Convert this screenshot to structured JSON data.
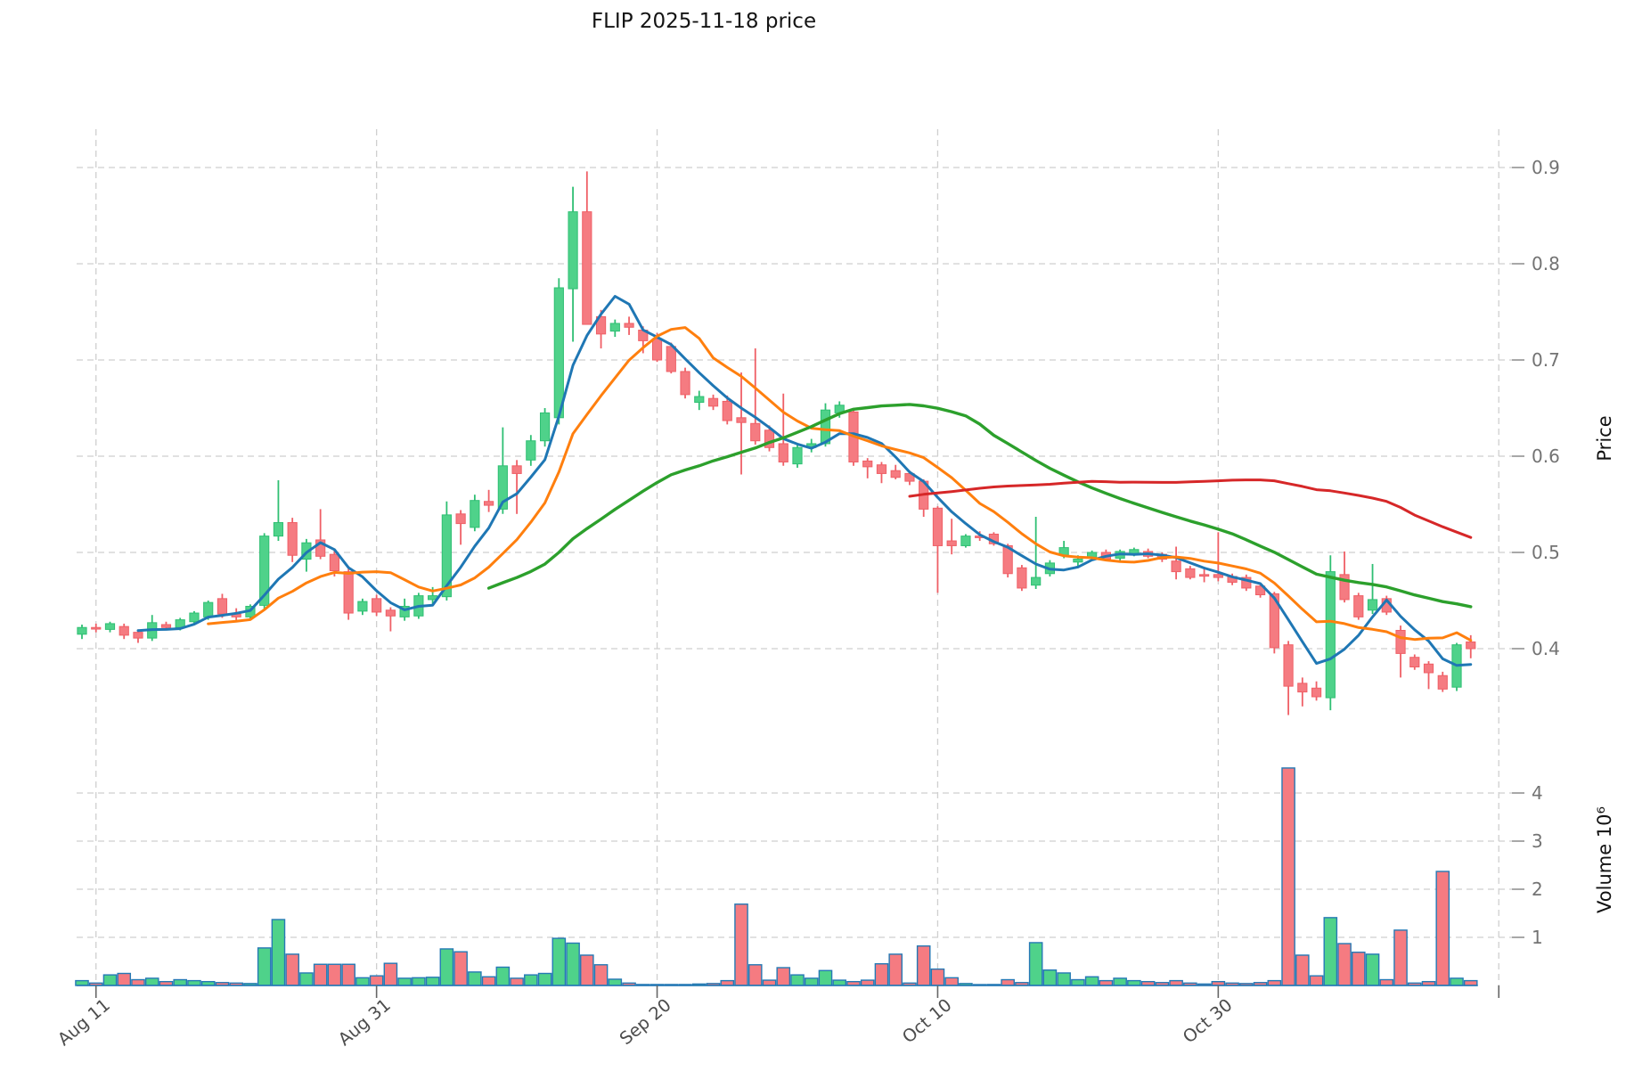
{
  "chart_data": {
    "type": "candlestick",
    "title": "FLIP  2025-11-18  price",
    "ylabel": "Price",
    "ylabel_volume": "Volume  10⁶",
    "legend": "none",
    "grid": "dashed",
    "x_tick_labels": [
      "Aug 11",
      "Aug 31",
      "Sep 20",
      "Oct 10",
      "Oct 30"
    ],
    "price_tick_labels": [
      "0.9",
      "0.8",
      "0.7",
      "0.6",
      "0.5",
      "0.4"
    ],
    "price_tick_values": [
      0.9,
      0.8,
      0.7,
      0.6,
      0.5,
      0.4
    ],
    "volume_tick_labels": [
      "4",
      "3",
      "2",
      "1"
    ],
    "volume_tick_values": [
      4,
      3,
      2,
      1
    ],
    "ylim_price": [
      0.32,
      0.95
    ],
    "ylim_volume": [
      0,
      4.7
    ],
    "moving_averages": {
      "windows": [
        5,
        10,
        30,
        60
      ],
      "colors": [
        "#1f77b4",
        "#ff7f0e",
        "#2ca02c",
        "#d62728"
      ]
    },
    "colors": {
      "up": "#4fd28a",
      "up_edge": "#2fbf73",
      "down": "#f57b81",
      "down_edge": "#ef5f66",
      "volume_edge": "#2579b5",
      "grid": "#cfcfcf",
      "tick_text": "#737373",
      "date_text": "#4d4d4d",
      "title_text": "#141414"
    },
    "columns": [
      "date",
      "open",
      "high",
      "low",
      "close",
      "volume_millions"
    ],
    "candles": [
      [
        "Aug 10",
        0.415,
        0.425,
        0.41,
        0.422,
        0.1
      ],
      [
        "Aug 11",
        0.422,
        0.426,
        0.417,
        0.421,
        0.05
      ],
      [
        "Aug 12",
        0.42,
        0.428,
        0.417,
        0.426,
        0.22
      ],
      [
        "Aug 13",
        0.423,
        0.426,
        0.41,
        0.414,
        0.25
      ],
      [
        "Aug 14",
        0.417,
        0.42,
        0.406,
        0.411,
        0.12
      ],
      [
        "Aug 15",
        0.411,
        0.435,
        0.408,
        0.427,
        0.15
      ],
      [
        "Aug 16",
        0.425,
        0.428,
        0.419,
        0.422,
        0.08
      ],
      [
        "Aug 17",
        0.422,
        0.432,
        0.419,
        0.43,
        0.12
      ],
      [
        "Aug 18",
        0.428,
        0.439,
        0.425,
        0.437,
        0.1
      ],
      [
        "Aug 19",
        0.433,
        0.45,
        0.43,
        0.448,
        0.08
      ],
      [
        "Aug 20",
        0.452,
        0.457,
        0.432,
        0.436,
        0.06
      ],
      [
        "Aug 21",
        0.436,
        0.442,
        0.428,
        0.433,
        0.05
      ],
      [
        "Aug 22",
        0.433,
        0.446,
        0.431,
        0.444,
        0.04
      ],
      [
        "Aug 23",
        0.445,
        0.52,
        0.44,
        0.517,
        0.78
      ],
      [
        "Aug 24",
        0.517,
        0.575,
        0.512,
        0.531,
        1.37
      ],
      [
        "Aug 25",
        0.531,
        0.536,
        0.49,
        0.497,
        0.65
      ],
      [
        "Aug 26",
        0.493,
        0.514,
        0.48,
        0.51,
        0.26
      ],
      [
        "Aug 27",
        0.513,
        0.545,
        0.493,
        0.496,
        0.44
      ],
      [
        "Aug 28",
        0.498,
        0.503,
        0.475,
        0.481,
        0.44
      ],
      [
        "Aug 29",
        0.48,
        0.484,
        0.43,
        0.437,
        0.44
      ],
      [
        "Aug 30",
        0.439,
        0.452,
        0.435,
        0.449,
        0.16
      ],
      [
        "Aug 31",
        0.452,
        0.456,
        0.434,
        0.438,
        0.2
      ],
      [
        "Sep 1",
        0.44,
        0.443,
        0.418,
        0.434,
        0.46
      ],
      [
        "Sep 2",
        0.433,
        0.452,
        0.429,
        0.444,
        0.15
      ],
      [
        "Sep 3",
        0.434,
        0.458,
        0.431,
        0.455,
        0.16
      ],
      [
        "Sep 4",
        0.451,
        0.464,
        0.444,
        0.455,
        0.17
      ],
      [
        "Sep 5",
        0.454,
        0.553,
        0.45,
        0.539,
        0.76
      ],
      [
        "Sep 6",
        0.54,
        0.544,
        0.508,
        0.53,
        0.7
      ],
      [
        "Sep 7",
        0.526,
        0.56,
        0.522,
        0.554,
        0.28
      ],
      [
        "Sep 8",
        0.553,
        0.565,
        0.542,
        0.549,
        0.18
      ],
      [
        "Sep 9",
        0.545,
        0.63,
        0.54,
        0.59,
        0.38
      ],
      [
        "Sep 10",
        0.59,
        0.596,
        0.54,
        0.582,
        0.15
      ],
      [
        "Sep 11",
        0.596,
        0.622,
        0.59,
        0.616,
        0.22
      ],
      [
        "Sep 12",
        0.616,
        0.65,
        0.61,
        0.645,
        0.25
      ],
      [
        "Sep 13",
        0.64,
        0.785,
        0.633,
        0.775,
        0.98
      ],
      [
        "Sep 14",
        0.774,
        0.88,
        0.719,
        0.854,
        0.88
      ],
      [
        "Sep 15",
        0.854,
        0.896,
        0.737,
        0.737,
        0.63
      ],
      [
        "Sep 16",
        0.745,
        0.752,
        0.712,
        0.727,
        0.43
      ],
      [
        "Sep 17",
        0.73,
        0.742,
        0.724,
        0.738,
        0.13
      ],
      [
        "Sep 18",
        0.738,
        0.745,
        0.726,
        0.734,
        0.05
      ],
      [
        "Sep 19",
        0.731,
        0.735,
        0.707,
        0.72,
        0.02
      ],
      [
        "Sep 20",
        0.722,
        0.728,
        0.698,
        0.7,
        0.02
      ],
      [
        "Sep 21",
        0.714,
        0.718,
        0.686,
        0.688,
        0.02
      ],
      [
        "Sep 22",
        0.688,
        0.692,
        0.66,
        0.664,
        0.02
      ],
      [
        "Sep 23",
        0.656,
        0.668,
        0.648,
        0.662,
        0.03
      ],
      [
        "Sep 24",
        0.66,
        0.664,
        0.648,
        0.652,
        0.04
      ],
      [
        "Sep 25",
        0.657,
        0.663,
        0.633,
        0.637,
        0.1
      ],
      [
        "Sep 26",
        0.64,
        0.687,
        0.581,
        0.635,
        1.69
      ],
      [
        "Sep 27",
        0.634,
        0.712,
        0.612,
        0.616,
        0.43
      ],
      [
        "Sep 28",
        0.627,
        0.632,
        0.605,
        0.609,
        0.11
      ],
      [
        "Sep 29",
        0.613,
        0.665,
        0.59,
        0.594,
        0.37
      ],
      [
        "Sep 30",
        0.592,
        0.612,
        0.588,
        0.609,
        0.22
      ],
      [
        "Oct 1",
        0.609,
        0.618,
        0.604,
        0.613,
        0.15
      ],
      [
        "Oct 2",
        0.613,
        0.655,
        0.61,
        0.648,
        0.31
      ],
      [
        "Oct 3",
        0.645,
        0.657,
        0.64,
        0.653,
        0.11
      ],
      [
        "Oct 4",
        0.646,
        0.65,
        0.59,
        0.594,
        0.08
      ],
      [
        "Oct 5",
        0.595,
        0.598,
        0.577,
        0.589,
        0.11
      ],
      [
        "Oct 6",
        0.591,
        0.594,
        0.572,
        0.582,
        0.45
      ],
      [
        "Oct 7",
        0.585,
        0.591,
        0.576,
        0.578,
        0.65
      ],
      [
        "Oct 8",
        0.582,
        0.585,
        0.57,
        0.574,
        0.05
      ],
      [
        "Oct 9",
        0.574,
        0.576,
        0.537,
        0.545,
        0.82
      ],
      [
        "Oct 10",
        0.546,
        0.548,
        0.458,
        0.507,
        0.34
      ],
      [
        "Oct 11",
        0.512,
        0.535,
        0.498,
        0.507,
        0.16
      ],
      [
        "Oct 12",
        0.507,
        0.519,
        0.505,
        0.517,
        0.04
      ],
      [
        "Oct 13",
        0.517,
        0.522,
        0.512,
        0.516,
        0.01
      ],
      [
        "Oct 14",
        0.519,
        0.521,
        0.507,
        0.509,
        0.02
      ],
      [
        "Oct 15",
        0.507,
        0.509,
        0.474,
        0.478,
        0.12
      ],
      [
        "Oct 16",
        0.484,
        0.487,
        0.46,
        0.463,
        0.06
      ],
      [
        "Oct 17",
        0.466,
        0.537,
        0.462,
        0.474,
        0.89
      ],
      [
        "Oct 18",
        0.478,
        0.492,
        0.475,
        0.489,
        0.32
      ],
      [
        "Oct 19",
        0.497,
        0.512,
        0.494,
        0.505,
        0.26
      ],
      [
        "Oct 20",
        0.49,
        0.497,
        0.485,
        0.493,
        0.12
      ],
      [
        "Oct 21",
        0.495,
        0.502,
        0.492,
        0.5,
        0.18
      ],
      [
        "Oct 22",
        0.5,
        0.503,
        0.491,
        0.493,
        0.1
      ],
      [
        "Oct 23",
        0.494,
        0.503,
        0.491,
        0.501,
        0.15
      ],
      [
        "Oct 24",
        0.498,
        0.505,
        0.496,
        0.503,
        0.1
      ],
      [
        "Oct 25",
        0.501,
        0.504,
        0.494,
        0.496,
        0.08
      ],
      [
        "Oct 26",
        0.498,
        0.5,
        0.49,
        0.493,
        0.06
      ],
      [
        "Oct 27",
        0.491,
        0.506,
        0.472,
        0.48,
        0.1
      ],
      [
        "Oct 28",
        0.483,
        0.486,
        0.472,
        0.474,
        0.05
      ],
      [
        "Oct 29",
        0.477,
        0.485,
        0.469,
        0.476,
        0.03
      ],
      [
        "Oct 30",
        0.477,
        0.521,
        0.47,
        0.474,
        0.08
      ],
      [
        "Oct 31",
        0.475,
        0.478,
        0.466,
        0.469,
        0.05
      ],
      [
        "Nov 1",
        0.474,
        0.477,
        0.46,
        0.463,
        0.04
      ],
      [
        "Nov 2",
        0.465,
        0.467,
        0.453,
        0.456,
        0.06
      ],
      [
        "Nov 3",
        0.457,
        0.459,
        0.395,
        0.401,
        0.1
      ],
      [
        "Nov 4",
        0.404,
        0.408,
        0.331,
        0.361,
        4.52
      ],
      [
        "Nov 5",
        0.364,
        0.37,
        0.34,
        0.355,
        0.63
      ],
      [
        "Nov 6",
        0.359,
        0.366,
        0.346,
        0.35,
        0.2
      ],
      [
        "Nov 7",
        0.349,
        0.497,
        0.336,
        0.48,
        1.41
      ],
      [
        "Nov 8",
        0.477,
        0.501,
        0.448,
        0.451,
        0.87
      ],
      [
        "Nov 9",
        0.455,
        0.458,
        0.43,
        0.433,
        0.69
      ],
      [
        "Nov 10",
        0.44,
        0.488,
        0.436,
        0.451,
        0.65
      ],
      [
        "Nov 11",
        0.452,
        0.455,
        0.435,
        0.438,
        0.12
      ],
      [
        "Nov 12",
        0.419,
        0.424,
        0.37,
        0.395,
        1.15
      ],
      [
        "Nov 13",
        0.391,
        0.394,
        0.378,
        0.381,
        0.05
      ],
      [
        "Nov 14",
        0.384,
        0.387,
        0.358,
        0.375,
        0.08
      ],
      [
        "Nov 15",
        0.372,
        0.376,
        0.355,
        0.358,
        2.37
      ],
      [
        "Nov 16",
        0.36,
        0.406,
        0.356,
        0.404,
        0.15
      ],
      [
        "Nov 17",
        0.407,
        0.414,
        0.39,
        0.4,
        0.1
      ]
    ]
  }
}
